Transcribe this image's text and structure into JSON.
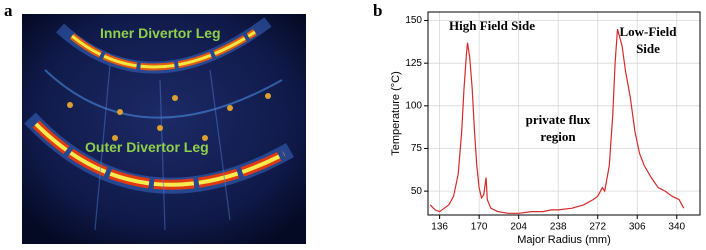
{
  "panel_labels": [
    "a",
    "b"
  ],
  "image_labels": [
    "Inner Divertor Leg",
    "Outer Divertor Leg"
  ],
  "chart_data": {
    "type": "line",
    "x": [
      128,
      132,
      136,
      140,
      144,
      148,
      152,
      155,
      157,
      159,
      160,
      162,
      164,
      166,
      168,
      170,
      172,
      174,
      176,
      177,
      180,
      186,
      195,
      204,
      215,
      225,
      232,
      238,
      250,
      260,
      268,
      272,
      276,
      278,
      282,
      285,
      287,
      289,
      291,
      293,
      296,
      300,
      304,
      308,
      312,
      318,
      324,
      330,
      336,
      342,
      346
    ],
    "values": [
      42,
      39,
      38,
      40,
      42,
      47,
      60,
      85,
      110,
      130,
      137,
      128,
      110,
      85,
      65,
      52,
      46,
      48,
      58,
      45,
      40,
      38,
      37,
      37,
      38,
      38,
      39,
      39,
      40,
      42,
      45,
      47,
      52,
      50,
      65,
      95,
      125,
      145,
      140,
      135,
      120,
      105,
      85,
      72,
      65,
      58,
      52,
      50,
      47,
      45,
      40
    ],
    "color": "#d42a2a",
    "xlim": [
      126,
      360
    ],
    "ylim": [
      36,
      155
    ],
    "xticks": [
      136,
      170,
      204,
      238,
      272,
      306,
      340
    ],
    "yticks": [
      50,
      75,
      100,
      125,
      150
    ],
    "grid": true,
    "x_label": "Major Radius (mm)",
    "y_label": "Temperature (°C)",
    "annotations": [
      [
        "High Field Side"
      ],
      [
        "Low-Field",
        "Side"
      ],
      [
        "private flux",
        "region"
      ]
    ]
  }
}
